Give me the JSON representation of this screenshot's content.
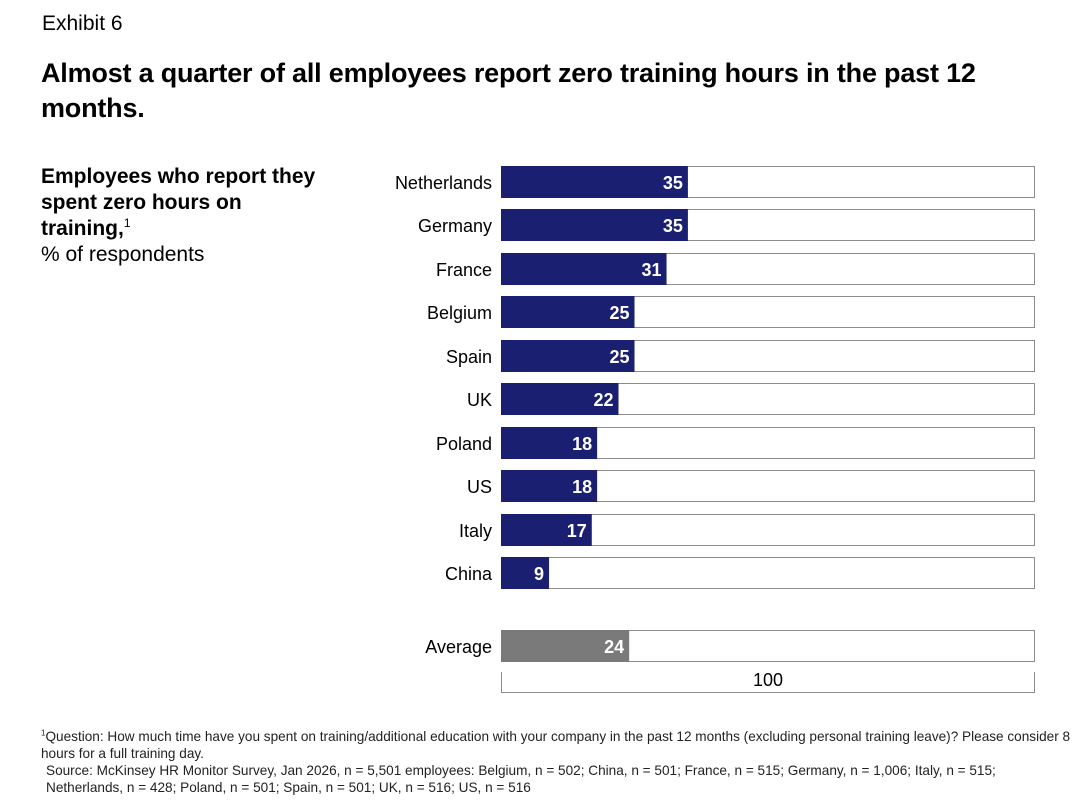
{
  "header": {
    "exhibit": "Exhibit 6",
    "title": "Almost a quarter of all employees report zero training hours in the past 12 months.",
    "subtitle_bold": "Employees who report they spent zero hours on training,",
    "subtitle_sup": "1",
    "subtitle_unit": "% of respondents"
  },
  "colors": {
    "bar": "#1a1f71",
    "average_bar": "#7a7a7a",
    "track_border": "#8c8c8c",
    "label_text": "#ffffff"
  },
  "chart_data": {
    "type": "bar",
    "orientation": "horizontal",
    "categories": [
      "Netherlands",
      "Germany",
      "France",
      "Belgium",
      "Spain",
      "UK",
      "Poland",
      "US",
      "Italy",
      "China"
    ],
    "values": [
      35,
      35,
      31,
      25,
      25,
      22,
      18,
      18,
      17,
      9
    ],
    "average": {
      "label": "Average",
      "value": 24
    },
    "xlim": [
      0,
      100
    ],
    "scale_label": "100"
  },
  "footnotes": {
    "sup": "1",
    "question": "Question: How much time have you spent on training/additional education with your company in the past 12 months (excluding personal training leave)? Please consider 8 hours for a full training day.",
    "source": "Source: McKinsey HR Monitor Survey, Jan 2026, n = 5,501 employees: Belgium, n = 502; China, n = 501; France, n = 515; Germany, n = 1,006; Italy, n = 515; Netherlands, n = 428; Poland, n = 501; Spain, n = 501; UK, n = 516; US, n = 516"
  }
}
